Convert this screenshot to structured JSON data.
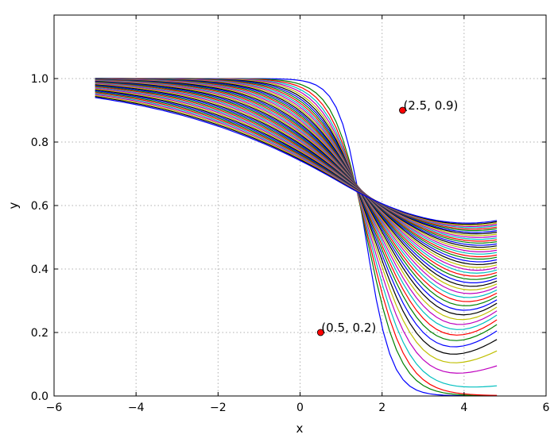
{
  "chart_data": {
    "type": "line",
    "title": "",
    "xlabel": "x",
    "ylabel": "y",
    "xlim": [
      -6,
      6
    ],
    "ylim": [
      0.0,
      1.2
    ],
    "xticks": [
      -6,
      -4,
      -2,
      0,
      2,
      4,
      6
    ],
    "xtick_labels": [
      "−6",
      "−4",
      "−2",
      "0",
      "2",
      "4",
      "6"
    ],
    "yticks": [
      0.0,
      0.2,
      0.4,
      0.6,
      0.8,
      1.0
    ],
    "ytick_labels": [
      "0.0",
      "0.2",
      "0.4",
      "0.6",
      "0.8",
      "1.0"
    ],
    "grid": true,
    "x_range_of_series": [
      -5,
      4.8
    ],
    "series_count": 50,
    "series_color_cycle": [
      "#0000ff",
      "#008000",
      "#ff0000",
      "#00bfbf",
      "#bf00bf",
      "#bfbf00",
      "#000000"
    ],
    "series_values_at_x_4_8": [
      0.0,
      0.0,
      0.002,
      0.032,
      0.095,
      0.142,
      0.178,
      0.205,
      0.225,
      0.24,
      0.255,
      0.268,
      0.28,
      0.292,
      0.303,
      0.314,
      0.324,
      0.334,
      0.344,
      0.353,
      0.362,
      0.371,
      0.38,
      0.389,
      0.397,
      0.405,
      0.413,
      0.421,
      0.429,
      0.437,
      0.444,
      0.452,
      0.459,
      0.466,
      0.473,
      0.479,
      0.486,
      0.492,
      0.498,
      0.504,
      0.51,
      0.516,
      0.521,
      0.527,
      0.532,
      0.537,
      0.541,
      0.545,
      0.549,
      0.553
    ],
    "annotations": [
      {
        "label": "(2.5, 0.9)",
        "x": 2.5,
        "y": 0.9
      },
      {
        "label": "(0.5, 0.2)",
        "x": 0.5,
        "y": 0.2
      }
    ],
    "marker_color": "#ff0000"
  }
}
